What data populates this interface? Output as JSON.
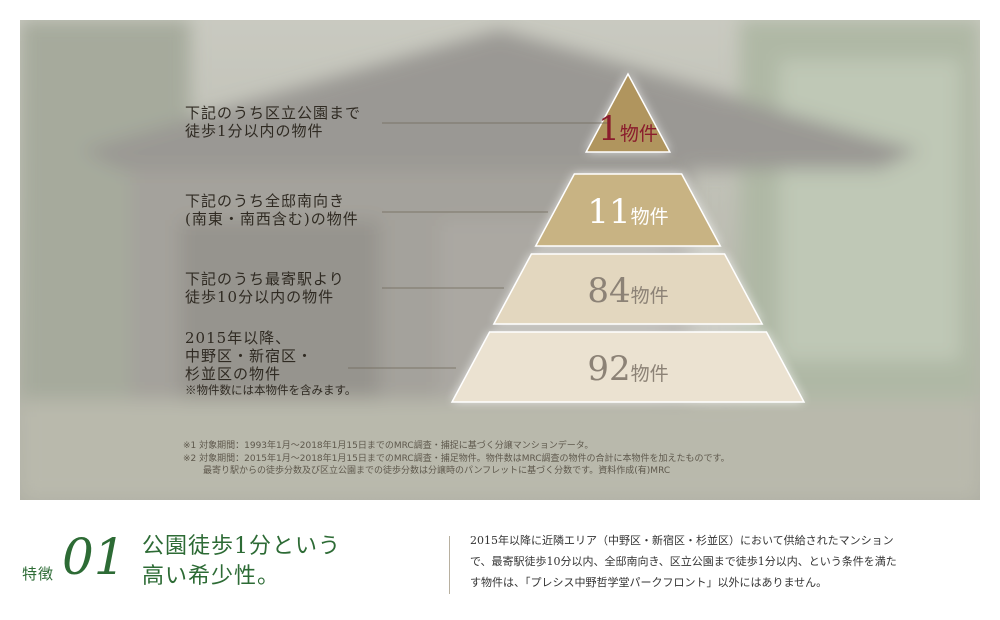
{
  "chart_data": {
    "type": "pyramid",
    "unit": "物件",
    "tiers": [
      {
        "value": 1,
        "unit": "物件",
        "label_lines": [
          "下記のうち区立公園まで",
          "徒歩1分以内の物件"
        ],
        "note": "",
        "color": "#b0955e",
        "text_color": "#8a1c2c"
      },
      {
        "value": 11,
        "unit": "物件",
        "label_lines": [
          "下記のうち全邸南向き",
          "(南東・南西含む)の物件"
        ],
        "note": "",
        "color": "#c8b383",
        "text_color": "#ffffff"
      },
      {
        "value": 84,
        "unit": "物件",
        "label_lines": [
          "下記のうち最寄駅より",
          "徒歩10分以内の物件"
        ],
        "note": "",
        "color": "#e3d7bf",
        "text_color": "#8c8276"
      },
      {
        "value": 92,
        "unit": "物件",
        "label_lines": [
          "2015年以降、",
          "中野区・新宿区・",
          "杉並区の物件"
        ],
        "note": "※物件数には本物件を含みます。",
        "color": "#ebe2d1",
        "text_color": "#8c8276"
      }
    ],
    "footnotes": [
      "※1 対象期間：1993年1月〜2018年1月15日までのMRC調査・捕捉に基づく分譲マンションデータ。",
      "※2 対象期間：2015年1月〜2018年1月15日までのMRC調査・捕足物件。物件数はMRC調査の物件の合計に本物件を加えたものです。",
      "最寄り駅からの徒歩分数及び区立公園までの徒歩分数は分譲時のパンフレットに基づく分数です。資料作成(有)MRC"
    ]
  },
  "feature": {
    "label": "特徴",
    "number": "01",
    "title_lines": [
      "公園徒歩1分という",
      "高い希少性。"
    ],
    "accent_color": "#2d6b35"
  },
  "description_lines": [
    "2015年以降に近隣エリア（中野区・新宿区・杉並区）において供給されたマンション",
    "で、最寄駅徒歩10分以内、全邸南向き、区立公園まで徒歩1分以内、という条件を満た",
    "す物件は、「プレシス中野哲学堂パークフロント」以外にはありません。"
  ]
}
